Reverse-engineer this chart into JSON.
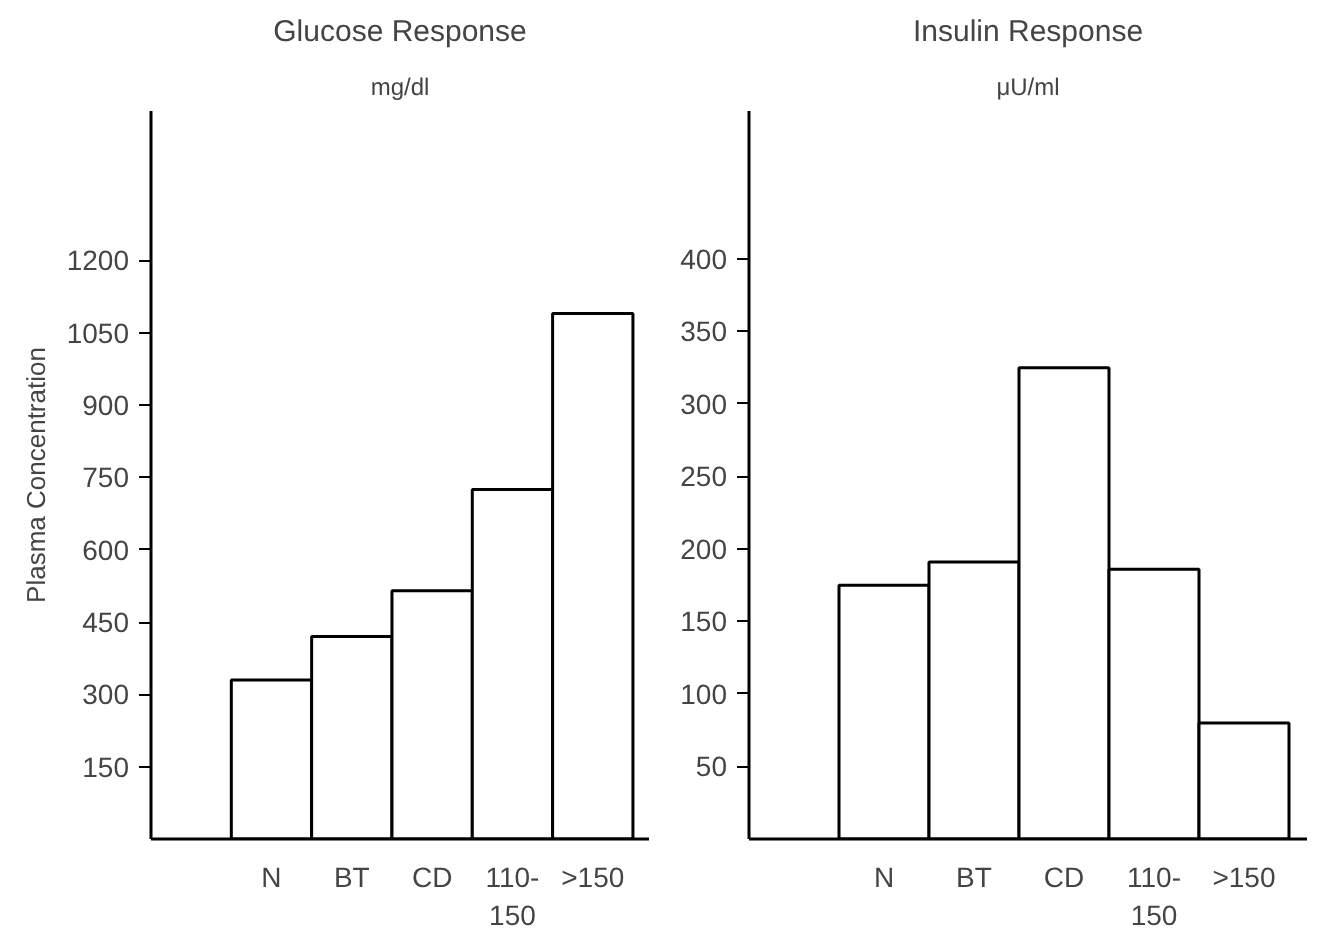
{
  "chart_data": [
    {
      "type": "bar",
      "title": "Glucose Response",
      "subtitle": "mg/dl",
      "ylabel": "Plasma Concentration",
      "categories": [
        "N",
        "BT",
        "CD",
        "110-\n150",
        ">150"
      ],
      "values": [
        330,
        420,
        515,
        725,
        1090
      ],
      "color": "#ffffff",
      "ylim": [
        0,
        1510
      ],
      "yticks": [
        150,
        300,
        450,
        600,
        750,
        900,
        1050,
        1200
      ],
      "grid": false
    },
    {
      "type": "bar",
      "title": "Insulin Response",
      "subtitle": "μU/ml",
      "categories": [
        "N",
        "BT",
        "CD",
        "110-\n150",
        ">150"
      ],
      "values": [
        175,
        191,
        325,
        186,
        80
      ],
      "color": "#ffffff",
      "ylim": [
        0,
        502
      ],
      "yticks": [
        50,
        100,
        150,
        200,
        250,
        300,
        350,
        400
      ],
      "grid": false
    }
  ]
}
